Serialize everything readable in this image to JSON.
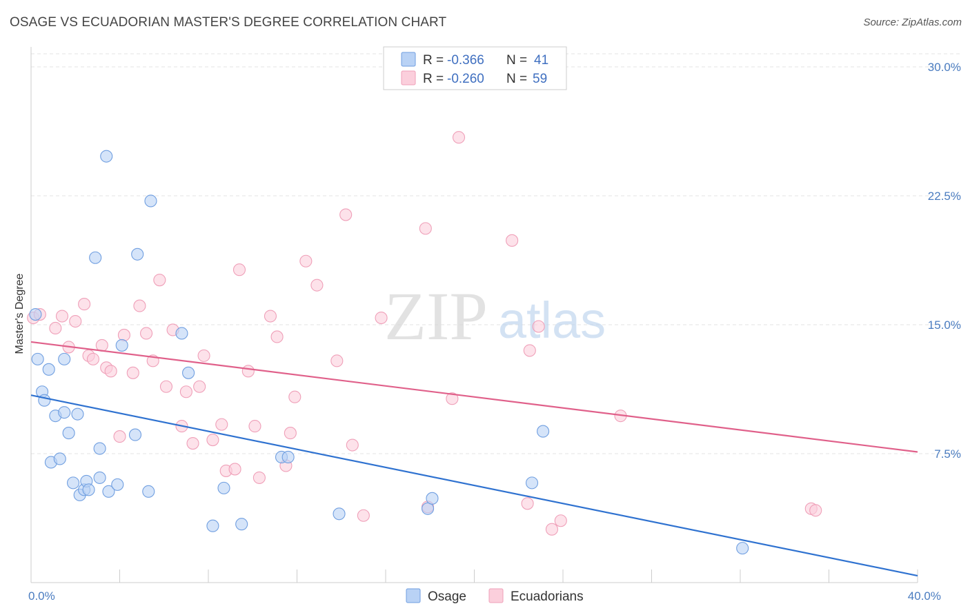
{
  "title": "OSAGE VS ECUADORIAN MASTER'S DEGREE CORRELATION CHART",
  "source": "Source: ZipAtlas.com",
  "watermark": {
    "zip": "ZIP",
    "atlas": "atlas"
  },
  "chart_data": {
    "type": "scatter",
    "title": "OSAGE VS ECUADORIAN MASTER'S DEGREE CORRELATION CHART",
    "xlabel": "",
    "ylabel": "Master's Degree",
    "xlim": [
      0,
      40
    ],
    "ylim": [
      0,
      30
    ],
    "x_ticks": [
      0,
      4,
      8,
      12,
      16,
      20,
      24,
      28,
      32,
      36,
      40
    ],
    "x_tick_labels": [
      {
        "value": 0,
        "label": "0.0%"
      },
      {
        "value": 40,
        "label": "40.0%"
      }
    ],
    "y_ticks": [
      {
        "value": 7.5,
        "label": "7.5%"
      },
      {
        "value": 15,
        "label": "15.0%"
      },
      {
        "value": 22.5,
        "label": "22.5%"
      },
      {
        "value": 30,
        "label": "30.0%"
      }
    ],
    "grid": true,
    "legend_position": "top-center",
    "series": [
      {
        "name": "Osage",
        "color": "#6f9ee0",
        "fill": "#b9d2f5",
        "line_color": "#2f72d0",
        "R": "-0.366",
        "N": "41",
        "trend": {
          "x": [
            0,
            40
          ],
          "y": [
            10.9,
            0.4
          ]
        },
        "points": [
          [
            0.2,
            15.6
          ],
          [
            0.3,
            13.0
          ],
          [
            0.5,
            11.1
          ],
          [
            0.6,
            10.6
          ],
          [
            0.8,
            12.4
          ],
          [
            0.9,
            7.0
          ],
          [
            1.1,
            9.7
          ],
          [
            1.3,
            7.2
          ],
          [
            1.5,
            9.9
          ],
          [
            1.5,
            13.0
          ],
          [
            1.7,
            8.7
          ],
          [
            1.9,
            5.8
          ],
          [
            2.1,
            9.8
          ],
          [
            2.2,
            5.1
          ],
          [
            2.4,
            5.4
          ],
          [
            2.5,
            5.9
          ],
          [
            2.6,
            5.4
          ],
          [
            2.9,
            18.9
          ],
          [
            3.1,
            6.1
          ],
          [
            3.1,
            7.8
          ],
          [
            3.4,
            24.8
          ],
          [
            3.5,
            5.3
          ],
          [
            3.9,
            5.7
          ],
          [
            4.1,
            13.8
          ],
          [
            4.7,
            8.6
          ],
          [
            4.8,
            19.1
          ],
          [
            5.3,
            5.3
          ],
          [
            5.4,
            22.2
          ],
          [
            6.8,
            14.5
          ],
          [
            7.1,
            12.2
          ],
          [
            8.2,
            3.3
          ],
          [
            8.7,
            5.5
          ],
          [
            9.5,
            3.4
          ],
          [
            11.3,
            7.3
          ],
          [
            11.6,
            7.3
          ],
          [
            13.9,
            4.0
          ],
          [
            17.9,
            4.3
          ],
          [
            18.1,
            4.9
          ],
          [
            22.6,
            5.8
          ],
          [
            23.1,
            8.8
          ],
          [
            32.1,
            2.0
          ]
        ]
      },
      {
        "name": "Ecuadorians",
        "color": "#ef9fb8",
        "fill": "#fbcfdc",
        "line_color": "#e0608a",
        "R": "-0.260",
        "N": "59",
        "trend": {
          "x": [
            0,
            40
          ],
          "y": [
            14.0,
            7.6
          ]
        },
        "points": [
          [
            0.1,
            15.4
          ],
          [
            0.4,
            15.6
          ],
          [
            1.1,
            14.8
          ],
          [
            1.4,
            15.5
          ],
          [
            1.7,
            13.7
          ],
          [
            2.0,
            15.2
          ],
          [
            2.4,
            16.2
          ],
          [
            2.6,
            13.2
          ],
          [
            2.8,
            13.0
          ],
          [
            3.2,
            13.8
          ],
          [
            3.4,
            12.5
          ],
          [
            3.6,
            12.3
          ],
          [
            4.0,
            8.5
          ],
          [
            4.2,
            14.4
          ],
          [
            4.6,
            12.2
          ],
          [
            4.9,
            16.1
          ],
          [
            5.2,
            14.5
          ],
          [
            5.5,
            12.9
          ],
          [
            5.8,
            17.6
          ],
          [
            6.1,
            11.4
          ],
          [
            6.4,
            14.7
          ],
          [
            6.8,
            9.1
          ],
          [
            7.0,
            11.1
          ],
          [
            7.3,
            8.1
          ],
          [
            7.6,
            11.4
          ],
          [
            7.8,
            13.2
          ],
          [
            8.2,
            8.3
          ],
          [
            8.6,
            9.2
          ],
          [
            8.8,
            6.5
          ],
          [
            9.2,
            6.6
          ],
          [
            9.4,
            18.2
          ],
          [
            9.8,
            12.3
          ],
          [
            10.1,
            9.1
          ],
          [
            10.3,
            6.1
          ],
          [
            10.8,
            15.5
          ],
          [
            11.1,
            14.3
          ],
          [
            11.5,
            6.8
          ],
          [
            11.7,
            8.7
          ],
          [
            11.9,
            10.8
          ],
          [
            12.4,
            18.7
          ],
          [
            12.9,
            17.3
          ],
          [
            13.8,
            12.9
          ],
          [
            14.2,
            21.4
          ],
          [
            14.5,
            8.0
          ],
          [
            15.0,
            3.9
          ],
          [
            15.8,
            15.4
          ],
          [
            17.8,
            20.6
          ],
          [
            17.9,
            4.4
          ],
          [
            19.0,
            10.7
          ],
          [
            19.3,
            25.9
          ],
          [
            21.7,
            19.9
          ],
          [
            22.4,
            4.6
          ],
          [
            22.5,
            13.5
          ],
          [
            22.9,
            14.9
          ],
          [
            23.5,
            3.1
          ],
          [
            23.9,
            3.6
          ],
          [
            26.6,
            9.7
          ],
          [
            35.2,
            4.3
          ],
          [
            35.4,
            4.2
          ]
        ]
      }
    ]
  }
}
